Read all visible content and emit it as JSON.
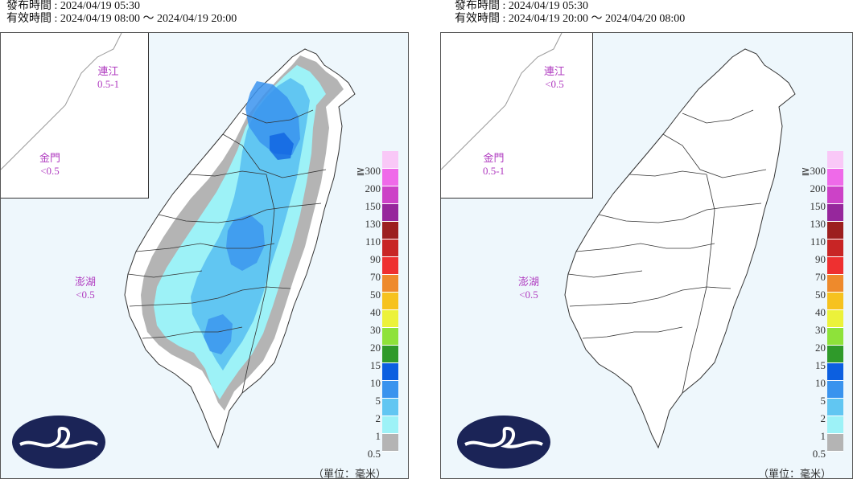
{
  "panels": [
    {
      "issue": "發布時間 : 2024/04/19 05:30",
      "valid": "有效時間 : 2024/04/19 08:00 ～ 2024/04/19 20:00",
      "islands": {
        "lienchiang": {
          "name": "連江",
          "value": "0.5-1"
        },
        "kinmen": {
          "name": "金門",
          "value": "<0.5"
        },
        "penghu": {
          "name": "澎湖",
          "value": "<0.5"
        }
      }
    },
    {
      "issue": "發布時間 : 2024/04/19 05:30",
      "valid": "有效時間 : 2024/04/19 20:00 ～ 2024/04/20 08:00",
      "islands": {
        "lienchiang": {
          "name": "連江",
          "value": "<0.5"
        },
        "kinmen": {
          "name": "金門",
          "value": "0.5-1"
        },
        "penghu": {
          "name": "澎湖",
          "value": "<0.5"
        }
      }
    }
  ],
  "legend": {
    "levels": [
      "≧300",
      "200",
      "150",
      "130",
      "110",
      "90",
      "70",
      "50",
      "40",
      "30",
      "20",
      "15",
      "10",
      "5",
      "2",
      "1",
      "0.5"
    ],
    "colors": [
      "#f9c8f7",
      "#ef6ae9",
      "#cc42c7",
      "#96279c",
      "#9c1f1f",
      "#c82525",
      "#ee3030",
      "#ee8a2c",
      "#f6c21f",
      "#ecf23a",
      "#8ee23a",
      "#2f9a2a",
      "#0c5fe0",
      "#3993ee",
      "#61c6f2",
      "#9df2f7",
      "#b4b4b4"
    ],
    "unit": "（單位：毫米）"
  },
  "colors": {
    "sea": "#eef7fc",
    "land": "#ffffff",
    "label": "#b03cc0",
    "logo": "#1b2457"
  },
  "icons": {
    "logo": "cwa-logo-icon"
  }
}
